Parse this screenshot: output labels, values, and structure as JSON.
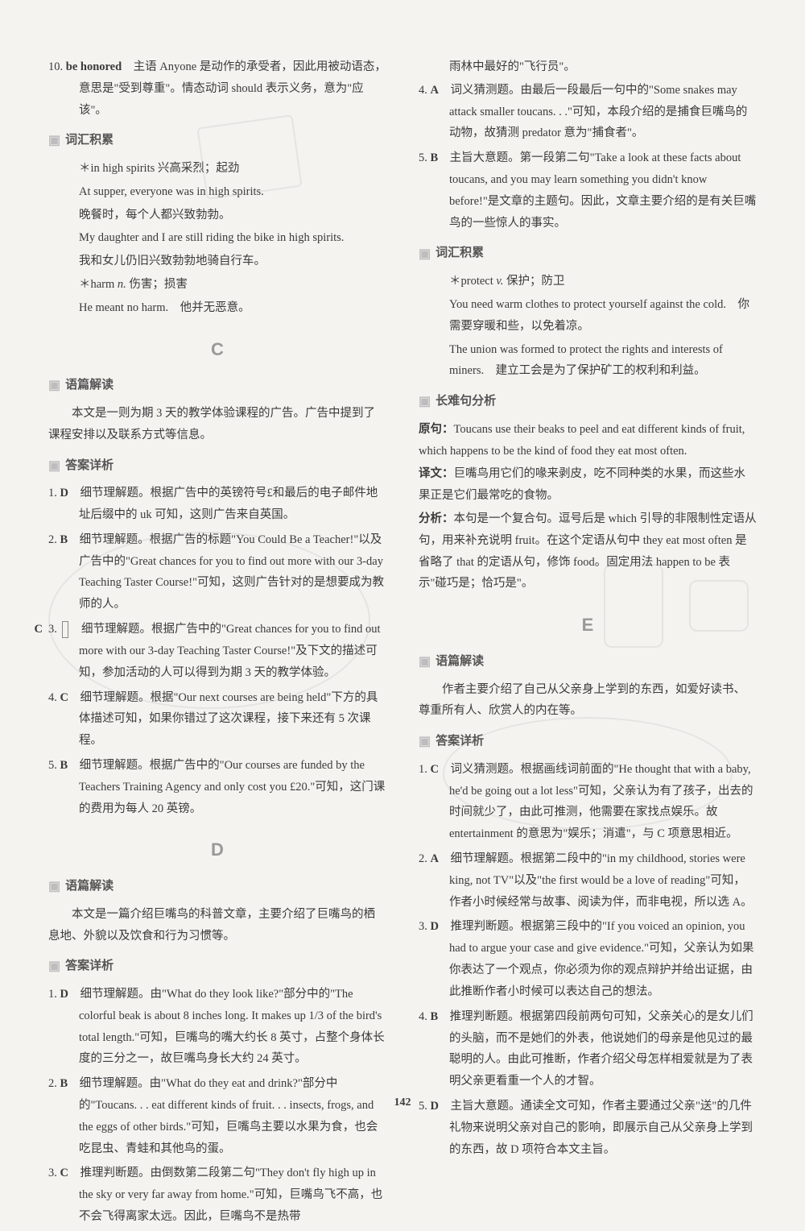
{
  "page_number": "142",
  "left": {
    "item10": "10. <b>be honored</b>　主语 Anyone 是动作的承受者，因此用被动语态，意思是\"受到尊重\"。情态动词 should 表示义务，意为\"应该\"。",
    "vocab_head": "词汇积累",
    "vocab_items": [
      "＊in high spirits 兴高采烈；起劲",
      "At supper, everyone was in high spirits.",
      "晚餐时，每个人都兴致勃勃。",
      "My daughter and I are still riding the bike in high spirits.",
      "我和女儿仍旧兴致勃勃地骑自行车。",
      "＊harm <i>n.</i> 伤害；损害",
      "He meant no harm.　他并无恶意。"
    ],
    "letterC": "C",
    "passage_head": "语篇解读",
    "passage_c": "本文是一则为期 3 天的教学体验课程的广告。广告中提到了课程安排以及联系方式等信息。",
    "answer_head": "答案详析",
    "answers_c": [
      "1. <b>D</b>　细节理解题。根据广告中的英镑符号£和最后的电子邮件地址后缀中的 uk 可知，这则广告来自英国。",
      "2. <b>B</b>　细节理解题。根据广告的标题\"You Could Be a Teacher!\"以及广告中的\"Great chances for you to find out more with our 3-day Teaching Taster Course!\"可知，这则广告针对的是想要成为教师的人。",
      "3. <span class='boxed'><b>C</b></span>　细节理解题。根据广告中的\"Great chances for you to find out more with our 3-day Teaching Taster Course!\"及下文的描述可知，参加活动的人可以得到为期 3 天的教学体验。",
      "4. <b>C</b>　细节理解题。根据\"Our next courses are being held\"下方的具体描述可知，如果你错过了这次课程，接下来还有 5 次课程。",
      "5. <b>B</b>　细节理解题。根据广告中的\"Our courses are funded by the Teachers Training Agency and only cost you £20.\"可知，这门课的费用为每人 20 英镑。"
    ],
    "letterD": "D",
    "passage_d": "本文是一篇介绍巨嘴鸟的科普文章，主要介绍了巨嘴鸟的栖息地、外貌以及饮食和行为习惯等。",
    "answers_d": [
      "1. <b>D</b>　细节理解题。由\"What do they look like?\"部分中的\"The colorful beak is about 8 inches long. It makes up 1/3 of the bird's total length.\"可知，巨嘴鸟的嘴大约长 8 英寸，占整个身体长度的三分之一，故巨嘴鸟身长大约 24 英寸。",
      "2. <b>B</b>　细节理解题。由\"What do they eat and drink?\"部分中的\"Toucans. . . eat different kinds of fruit. . . insects, frogs, and the eggs of other birds.\"可知，巨嘴鸟主要以水果为食，也会吃昆虫、青蛙和其他鸟的蛋。",
      "3. <b>C</b>　推理判断题。由倒数第二段第二句\"They don't fly high up in the sky or very far away from home.\"可知，巨嘴鸟飞不高，也不会飞得离家太远。因此，巨嘴鸟不是热带"
    ]
  },
  "right": {
    "cont_d3": "雨林中最好的\"飞行员\"。",
    "answers_d_cont": [
      "4. <b>A</b>　词义猜测题。由最后一段最后一句中的\"Some snakes may attack smaller toucans. . .\"可知，本段介绍的是捕食巨嘴鸟的动物，故猜测 predator 意为\"捕食者\"。",
      "5. <b>B</b>　主旨大意题。第一段第二句\"Take a look at these facts about toucans, and you may learn something you didn't know before!\"是文章的主题句。因此，文章主要介绍的是有关巨嘴鸟的一些惊人的事实。"
    ],
    "vocab_head2": "词汇积累",
    "vocab_items2": [
      "＊protect <i>v.</i> 保护；防卫",
      "You need warm clothes to protect yourself against the cold.　你需要穿暖和些，以免着凉。",
      "The union was formed to protect the rights and interests of miners.　建立工会是为了保护矿工的权利和利益。"
    ],
    "long_head": "长难句分析",
    "long_src_label": "原句：",
    "long_src": "Toucans use their beaks to peel and eat different kinds of fruit, which happens to be the kind of food they eat most often.",
    "long_trans_label": "译文：",
    "long_trans": "巨嘴鸟用它们的喙来剥皮，吃不同种类的水果，而这些水果正是它们最常吃的食物。",
    "long_ana_label": "分析：",
    "long_ana": "本句是一个复合句。逗号后是 which 引导的非限制性定语从句，用来补充说明 fruit。在这个定语从句中 they eat most often 是省略了 that 的定语从句，修饰 food。固定用法 happen to be 表示\"碰巧是；恰巧是\"。",
    "letterE": "E",
    "passage_head2": "语篇解读",
    "passage_e": "作者主要介绍了自己从父亲身上学到的东西，如爱好读书、尊重所有人、欣赏人的内在等。",
    "answer_head2": "答案详析",
    "answers_e": [
      "1. <b>C</b>　词义猜测题。根据画线词前面的\"He thought that with a baby, he'd be going out a lot less\"可知，父亲认为有了孩子，出去的时间就少了，由此可推测，他需要在家找点娱乐。故 entertainment 的意思为\"娱乐；消遣\"，与 C 项意思相近。",
      "2. <b>A</b>　细节理解题。根据第二段中的\"in my childhood, stories were king, not TV\"以及\"the first would be a love of reading\"可知，作者小时候经常与故事、阅读为伴，而非电视，所以选 A。",
      "3. <b>D</b>　推理判断题。根据第三段中的\"If you voiced an opinion, you had to argue your case and give evidence.\"可知，父亲认为如果你表达了一个观点，你必须为你的观点辩护并给出证据，由此推断作者小时候可以表达自己的想法。",
      "4. <b>B</b>　推理判断题。根据第四段前两句可知，父亲关心的是女儿们的头脑，而不是她们的外表，他说她们的母亲是他见过的最聪明的人。由此可推断，作者介绍父母怎样相爱就是为了表明父亲更看重一个人的才智。",
      "5. <b>D</b>　主旨大意题。通读全文可知，作者主要通过父亲\"送\"的几件礼物来说明父亲对自己的影响，即展示自己从父亲身上学到的东西，故 D 项符合本文主旨。"
    ]
  }
}
